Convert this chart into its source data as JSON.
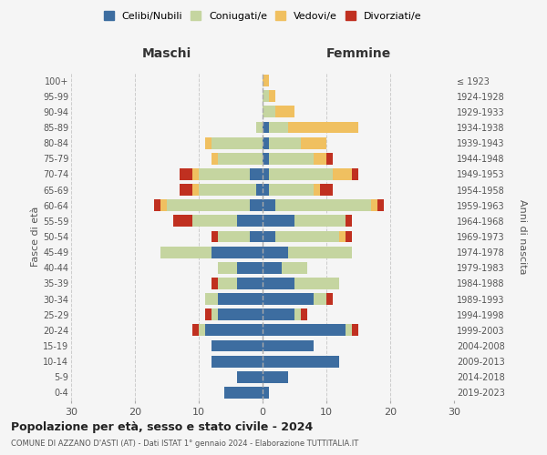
{
  "age_groups": [
    "0-4",
    "5-9",
    "10-14",
    "15-19",
    "20-24",
    "25-29",
    "30-34",
    "35-39",
    "40-44",
    "45-49",
    "50-54",
    "55-59",
    "60-64",
    "65-69",
    "70-74",
    "75-79",
    "80-84",
    "85-89",
    "90-94",
    "95-99",
    "100+"
  ],
  "birth_years": [
    "2019-2023",
    "2014-2018",
    "2009-2013",
    "2004-2008",
    "1999-2003",
    "1994-1998",
    "1989-1993",
    "1984-1988",
    "1979-1983",
    "1974-1978",
    "1969-1973",
    "1964-1968",
    "1959-1963",
    "1954-1958",
    "1949-1953",
    "1944-1948",
    "1939-1943",
    "1934-1938",
    "1929-1933",
    "1924-1928",
    "≤ 1923"
  ],
  "colors": {
    "celibe": "#3d6da0",
    "coniugato": "#c5d5a0",
    "vedovo": "#f0c060",
    "divorziato": "#c03020"
  },
  "maschi": {
    "celibe": [
      6,
      4,
      8,
      8,
      9,
      7,
      7,
      4,
      4,
      8,
      2,
      4,
      2,
      1,
      2,
      0,
      0,
      0,
      0,
      0,
      0
    ],
    "coniugato": [
      0,
      0,
      0,
      0,
      1,
      1,
      2,
      3,
      3,
      8,
      5,
      7,
      13,
      9,
      8,
      7,
      8,
      1,
      0,
      0,
      0
    ],
    "vedovo": [
      0,
      0,
      0,
      0,
      0,
      0,
      0,
      0,
      0,
      0,
      0,
      0,
      1,
      1,
      1,
      1,
      1,
      0,
      0,
      0,
      0
    ],
    "divorziato": [
      0,
      0,
      0,
      0,
      1,
      1,
      0,
      1,
      0,
      0,
      1,
      3,
      1,
      2,
      2,
      0,
      0,
      0,
      0,
      0,
      0
    ]
  },
  "femmine": {
    "celibe": [
      1,
      4,
      12,
      8,
      13,
      5,
      8,
      5,
      3,
      4,
      2,
      5,
      2,
      1,
      1,
      1,
      1,
      1,
      0,
      0,
      0
    ],
    "coniugato": [
      0,
      0,
      0,
      0,
      1,
      1,
      2,
      7,
      4,
      10,
      10,
      8,
      15,
      7,
      10,
      7,
      5,
      3,
      2,
      1,
      0
    ],
    "vedovo": [
      0,
      0,
      0,
      0,
      0,
      0,
      0,
      0,
      0,
      0,
      1,
      0,
      1,
      1,
      3,
      2,
      4,
      11,
      3,
      1,
      1
    ],
    "divorziato": [
      0,
      0,
      0,
      0,
      1,
      1,
      1,
      0,
      0,
      0,
      1,
      1,
      1,
      2,
      1,
      1,
      0,
      0,
      0,
      0,
      0
    ]
  },
  "xlim": 30,
  "title": "Popolazione per età, sesso e stato civile - 2024",
  "subtitle": "COMUNE DI AZZANO D'ASTI (AT) - Dati ISTAT 1° gennaio 2024 - Elaborazione TUTTITALIA.IT",
  "ylabel_left": "Fasce di età",
  "ylabel_right": "Anni di nascita",
  "maschi_label": "Maschi",
  "femmine_label": "Femmine",
  "legend_labels": [
    "Celibi/Nubili",
    "Coniugati/e",
    "Vedovi/e",
    "Divorziati/e"
  ],
  "background_color": "#f5f5f5",
  "grid_color": "#cccccc"
}
